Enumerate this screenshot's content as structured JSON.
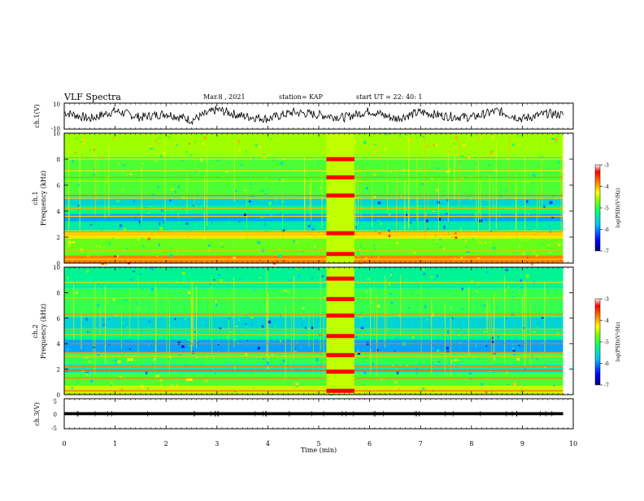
{
  "header": {
    "title": "VLF Spectra",
    "date": "Mar.8  , 2021",
    "station": "station= KAP",
    "start": "start  UT  =   22: 40: 1"
  },
  "chart_data": [
    {
      "type": "line",
      "panel": "ch1-waveform",
      "ylabel": "ch.1(V)",
      "ylim": [
        -10,
        10
      ],
      "yticks": [
        10,
        -10
      ],
      "x": [
        0,
        0.5,
        1,
        1.5,
        2,
        2.5,
        3,
        3.5,
        4,
        4.5,
        5,
        5.5,
        6,
        6.5,
        7,
        7.5,
        8,
        8.5,
        9,
        9.5,
        9.8
      ],
      "values": [
        3,
        -2,
        4,
        -1,
        2,
        -3,
        5,
        0,
        -2,
        3,
        1,
        -1,
        4,
        -2,
        3,
        0,
        -1,
        4,
        -2,
        2,
        1
      ],
      "color": "#000000"
    },
    {
      "type": "heatmap",
      "panel": "ch1-spectrogram",
      "ylabel": "Frequency (kHz)",
      "channel_label": "ch.1",
      "ylim": [
        0,
        10
      ],
      "yticks": [
        0,
        2,
        4,
        6,
        8,
        10
      ],
      "colorbar": {
        "label": "log(PSD)(V²/Hz)",
        "range": [
          -7,
          -3
        ],
        "ticks": [
          -3,
          -4,
          -5,
          -6,
          -7
        ],
        "colors": [
          "#00007f",
          "#0000ff",
          "#00bfff",
          "#00ff7f",
          "#7fff00",
          "#ffff00",
          "#ff7f00",
          "#ff0000",
          "#ffffff"
        ]
      },
      "bands": [
        {
          "y0": 0,
          "y1": 0.6,
          "level": -3.8
        },
        {
          "y0": 0.6,
          "y1": 1.9,
          "level": -4.8
        },
        {
          "y0": 1.9,
          "y1": 2.5,
          "level": -4.2
        },
        {
          "y0": 2.5,
          "y1": 3.2,
          "level": -5.4
        },
        {
          "y0": 3.2,
          "y1": 3.8,
          "level": -5.9
        },
        {
          "y0": 3.8,
          "y1": 4.4,
          "level": -5.2
        },
        {
          "y0": 4.4,
          "y1": 5.1,
          "level": -5.6
        },
        {
          "y0": 5.1,
          "y1": 8.2,
          "level": -4.9
        },
        {
          "y0": 8.2,
          "y1": 10,
          "level": -4.6
        }
      ],
      "lines_khz": [
        0.1,
        0.3,
        1.0,
        2.2,
        2.4,
        3.6,
        4.2,
        5.0,
        5.2,
        6.3,
        6.6,
        7.1,
        8.0
      ],
      "event": {
        "t0": 5.15,
        "t1": 5.7,
        "bands_khz": [
          5.2,
          6.6,
          8.0,
          2.3,
          0.7
        ]
      }
    },
    {
      "type": "heatmap",
      "panel": "ch2-spectrogram",
      "ylabel": "Frequency (kHz)",
      "channel_label": "ch.2",
      "ylim": [
        0,
        10
      ],
      "yticks": [
        0,
        2,
        4,
        6,
        8,
        10
      ],
      "colorbar": {
        "label": "log(PSD)(V²/Hz)",
        "range": [
          -7,
          -3
        ],
        "ticks": [
          -3,
          -4,
          -5,
          -6,
          -7
        ]
      },
      "bands": [
        {
          "y0": 0,
          "y1": 0.7,
          "level": -4.5
        },
        {
          "y0": 0.7,
          "y1": 1.7,
          "level": -4.9
        },
        {
          "y0": 1.7,
          "y1": 2.4,
          "level": -5.4
        },
        {
          "y0": 2.4,
          "y1": 3.3,
          "level": -5.0
        },
        {
          "y0": 3.3,
          "y1": 4.3,
          "level": -5.9
        },
        {
          "y0": 4.3,
          "y1": 5.2,
          "level": -5.3
        },
        {
          "y0": 5.2,
          "y1": 6.1,
          "level": -5.6
        },
        {
          "y0": 6.1,
          "y1": 8.3,
          "level": -5.0
        },
        {
          "y0": 8.3,
          "y1": 10,
          "level": -5.3
        }
      ],
      "lines_khz": [
        0.1,
        0.3,
        1.3,
        1.9,
        2.2,
        3.0,
        3.3,
        4.0,
        4.7,
        5.1,
        6.3,
        7.6,
        8.8
      ],
      "event": {
        "t0": 5.15,
        "t1": 5.7,
        "bands_khz": [
          9.1,
          7.5,
          6.2,
          4.6,
          3.1,
          1.8,
          0.3
        ]
      }
    },
    {
      "type": "line",
      "panel": "ch3-waveform",
      "ylabel": "ch.3(V)",
      "ylim": [
        -5,
        5
      ],
      "yticks": [
        5,
        0,
        -5
      ],
      "x": [
        0,
        9.8
      ],
      "values": [
        0,
        0
      ],
      "band_halfwidth": 0.5,
      "color": "#000000"
    }
  ],
  "x_axis": {
    "label": "Time  (min)",
    "range": [
      0,
      10
    ],
    "ticks": [
      "0",
      "1",
      "2",
      "3",
      "4",
      "5",
      "6",
      "7",
      "8",
      "9",
      "10"
    ]
  }
}
